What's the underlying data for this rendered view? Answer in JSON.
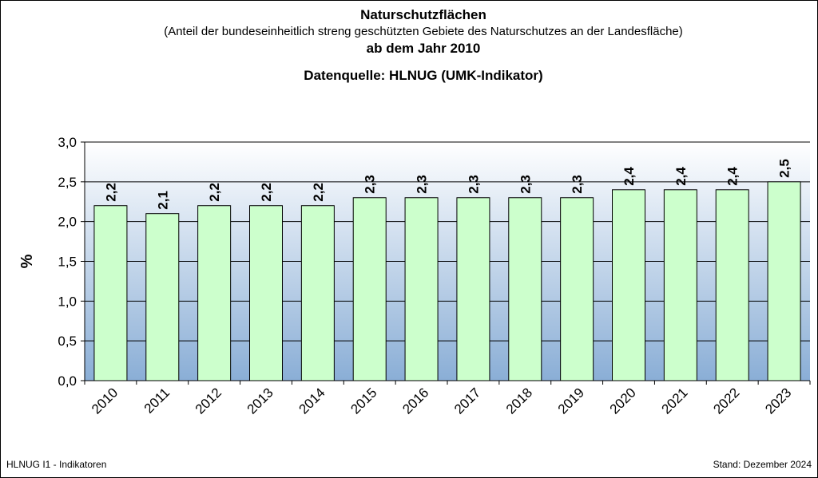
{
  "chart_data": {
    "type": "bar",
    "title": "Naturschutzflächen",
    "subtitle": "(Anteil der bundeseinheitlich  streng geschützten  Gebiete des Naturschutzes  an der Landesfläche)",
    "subtitle2": "ab dem Jahr 2010",
    "source": "Datenquelle: HLNUG (UMK-Indikator)",
    "xlabel": "",
    "ylabel": "%",
    "categories": [
      "2010",
      "2011",
      "2012",
      "2013",
      "2014",
      "2015",
      "2016",
      "2017",
      "2018",
      "2019",
      "2020",
      "2021",
      "2022",
      "2023"
    ],
    "values": [
      2.2,
      2.1,
      2.2,
      2.2,
      2.2,
      2.3,
      2.3,
      2.3,
      2.3,
      2.3,
      2.4,
      2.4,
      2.4,
      2.5
    ],
    "value_labels": [
      "2,2",
      "2,1",
      "2,2",
      "2,2",
      "2,2",
      "2,3",
      "2,3",
      "2,3",
      "2,3",
      "2,3",
      "2,4",
      "2,4",
      "2,4",
      "2,5"
    ],
    "ylim": [
      0,
      3.0
    ],
    "yticks": [
      0,
      0.5,
      1.0,
      1.5,
      2.0,
      2.5,
      3.0
    ],
    "ytick_labels": [
      "0,0",
      "0,5",
      "1,0",
      "1,5",
      "2,0",
      "2,5",
      "3,0"
    ],
    "grid": true,
    "legend": "none",
    "colors": {
      "bar_fill": "#ccffcc",
      "bar_stroke": "#000000",
      "plot_top": "#ffffff",
      "plot_bottom": "#8aaed6",
      "gridline": "#000000"
    }
  },
  "footer": {
    "left": "HLNUG I1  - Indikatoren",
    "right": "Stand: Dezember 2024"
  }
}
